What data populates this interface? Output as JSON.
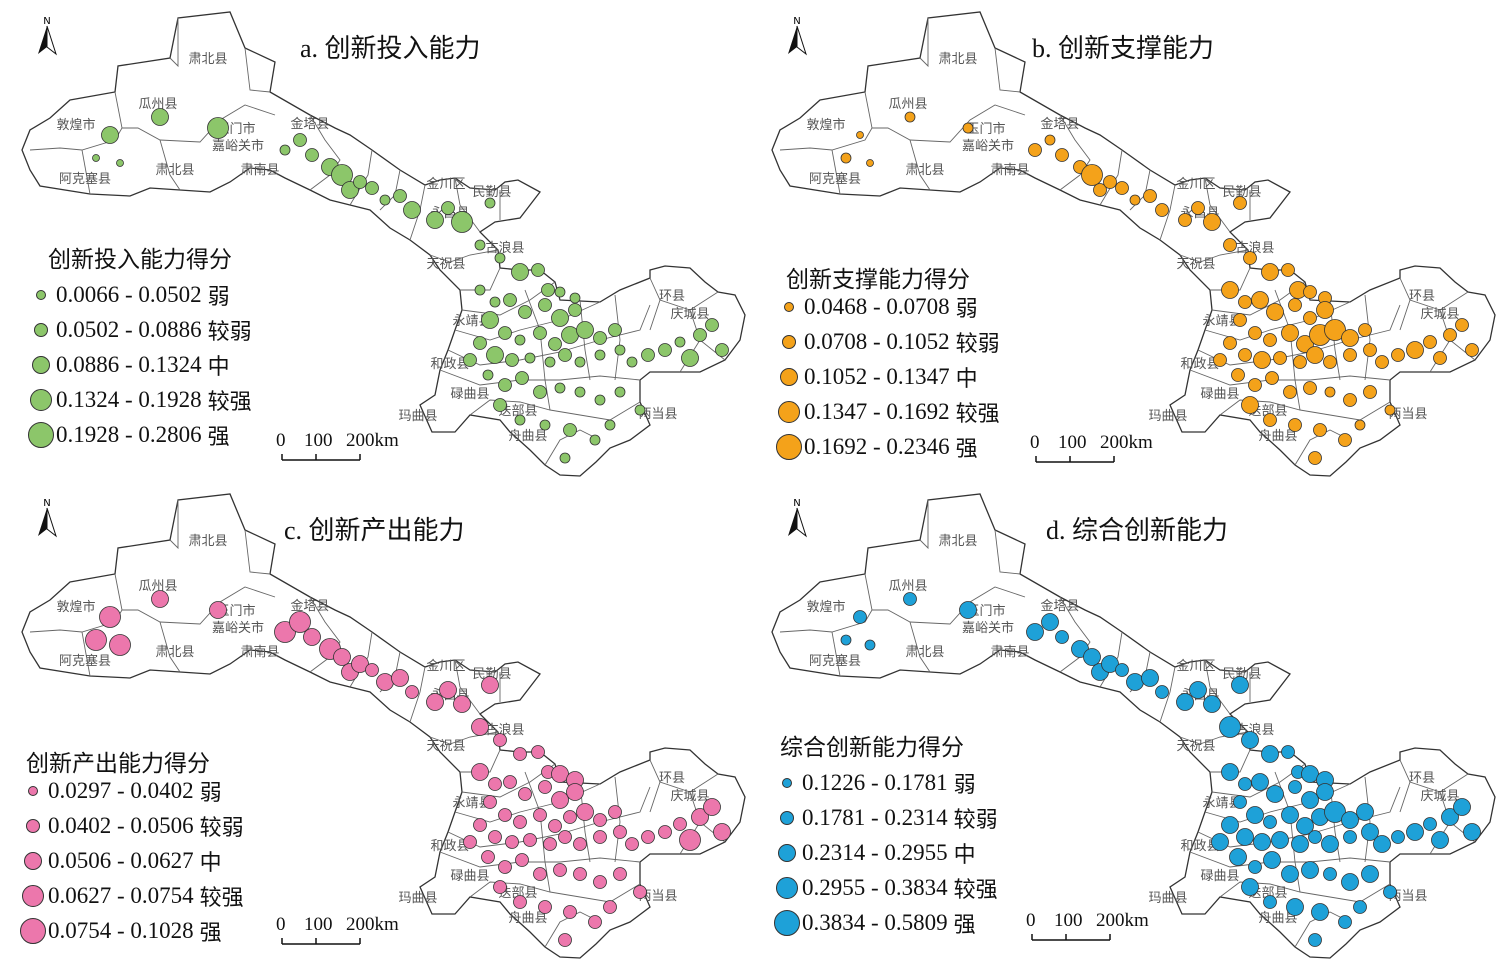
{
  "panels": [
    {
      "id": "a",
      "title": "a.  创新投入能力",
      "legend_title": "创新投入能力得分",
      "color": "#8cc66a",
      "classes": [
        {
          "range": "0.0066 - 0.0502",
          "label": "弱"
        },
        {
          "range": "0.0502 - 0.0886",
          "label": "较弱"
        },
        {
          "range": "0.0886 - 0.1324",
          "label": "中"
        },
        {
          "range": "0.1324 - 0.1928",
          "label": "较强"
        },
        {
          "range": "0.1928 - 0.2806",
          "label": "强"
        }
      ]
    },
    {
      "id": "b",
      "title": "b.  创新支撑能力",
      "legend_title": "创新支撑能力得分",
      "color": "#f4a21a",
      "classes": [
        {
          "range": "0.0468 - 0.0708",
          "label": "弱"
        },
        {
          "range": "0.0708 - 0.1052",
          "label": "较弱"
        },
        {
          "range": "0.1052 - 0.1347",
          "label": "中"
        },
        {
          "range": "0.1347 - 0.1692",
          "label": "较强"
        },
        {
          "range": "0.1692 - 0.2346",
          "label": "强"
        }
      ]
    },
    {
      "id": "c",
      "title": "c.  创新产出能力",
      "legend_title": "创新产出能力得分",
      "color": "#ec77ac",
      "classes": [
        {
          "range": "0.0297 - 0.0402",
          "label": "弱"
        },
        {
          "range": "0.0402 - 0.0506",
          "label": "较弱"
        },
        {
          "range": "0.0506 - 0.0627",
          "label": "中"
        },
        {
          "range": "0.0627 - 0.0754",
          "label": "较强"
        },
        {
          "range": "0.0754 - 0.1028",
          "label": "强"
        }
      ]
    },
    {
      "id": "d",
      "title": "d.  综合创新能力",
      "legend_title": "综合创新能力得分",
      "color": "#1ea1d8",
      "classes": [
        {
          "range": "0.1226 - 0.1781",
          "label": "弱"
        },
        {
          "range": "0.1781 - 0.2314",
          "label": "较弱"
        },
        {
          "range": "0.2314 - 0.2955",
          "label": "中"
        },
        {
          "range": "0.2955 - 0.3834",
          "label": "较强"
        },
        {
          "range": "0.3834 - 0.5809",
          "label": "强"
        }
      ]
    }
  ],
  "scale": {
    "zero": "0",
    "mid": "100",
    "end": "200km"
  },
  "north_letter": "N",
  "place_labels": [
    "肃北县",
    "瓜州县",
    "敦煌市",
    "玉门市",
    "嘉峪关市",
    "金塔县",
    "肃南县",
    "阿克塞县",
    "肃北县",
    "金川区",
    "民勤县",
    "永昌县",
    "古浪县",
    "天祝县",
    "环县",
    "庆城县",
    "永靖县",
    "和政县",
    "碌曲县",
    "玛曲县",
    "舟曲县",
    "迭部县",
    "两当县"
  ],
  "symbols": {
    "a": [
      [
        0,
        0,
        3,
        3,
        4,
        1,
        2,
        2,
        3,
        4,
        3,
        2,
        2,
        1,
        2,
        3,
        3,
        2,
        4,
        1,
        1,
        1,
        3,
        2,
        2,
        1,
        1,
        1,
        1,
        2,
        2,
        2,
        3,
        2,
        3,
        2,
        1,
        2,
        2,
        3,
        3,
        2,
        2,
        2,
        3,
        2,
        1,
        1,
        2,
        1,
        1,
        1,
        1,
        2,
        2,
        1,
        2,
        2,
        2,
        3,
        2,
        1,
        2,
        2,
        2,
        1,
        1,
        1,
        1,
        1,
        2,
        1,
        1,
        2,
        1,
        1,
        1
      ]
    ],
    "b": [
      [
        1,
        0,
        0,
        1,
        1,
        2,
        1,
        2,
        2,
        4,
        2,
        2,
        2,
        1,
        2,
        2,
        2,
        2,
        3,
        2,
        2,
        2,
        3,
        2,
        3,
        2,
        2,
        3,
        2,
        3,
        3,
        2,
        2,
        3,
        2,
        2,
        2,
        3,
        3,
        4,
        4,
        3,
        2,
        2,
        2,
        3,
        2,
        2,
        3,
        2,
        2,
        2,
        2,
        2,
        3,
        2,
        2,
        2,
        2,
        2,
        2,
        2,
        2,
        2,
        2,
        2,
        1,
        2,
        2,
        1,
        3,
        2,
        2,
        2,
        2,
        1,
        2
      ]
    ],
    "c": [
      [
        4,
        4,
        4,
        3,
        3,
        4,
        4,
        3,
        4,
        3,
        3,
        3,
        2,
        3,
        3,
        2,
        3,
        3,
        3,
        3,
        3,
        2,
        2,
        2,
        2,
        3,
        3,
        3,
        2,
        2,
        2,
        2,
        3,
        3,
        2,
        2,
        2,
        2,
        2,
        2,
        3,
        2,
        2,
        2,
        2,
        2,
        2,
        2,
        2,
        2,
        2,
        2,
        2,
        2,
        2,
        2,
        3,
        3,
        3,
        4,
        2,
        2,
        2,
        2,
        2,
        2,
        2,
        2,
        2,
        2,
        2,
        2,
        2,
        2,
        2,
        2,
        2
      ]
    ],
    "d": [
      [
        1,
        1,
        2,
        2,
        3,
        3,
        3,
        2,
        3,
        3,
        3,
        3,
        2,
        3,
        3,
        2,
        3,
        3,
        3,
        3,
        4,
        3,
        3,
        2,
        2,
        3,
        3,
        3,
        2,
        3,
        3,
        2,
        3,
        3,
        2,
        3,
        2,
        3,
        3,
        3,
        4,
        3,
        3,
        3,
        3,
        3,
        3,
        3,
        2,
        3,
        2,
        3,
        3,
        2,
        3,
        2,
        3,
        3,
        3,
        3,
        3,
        3,
        2,
        3,
        3,
        3,
        2,
        3,
        3,
        2,
        3,
        2,
        3,
        3,
        2,
        2,
        2
      ]
    ]
  }
}
